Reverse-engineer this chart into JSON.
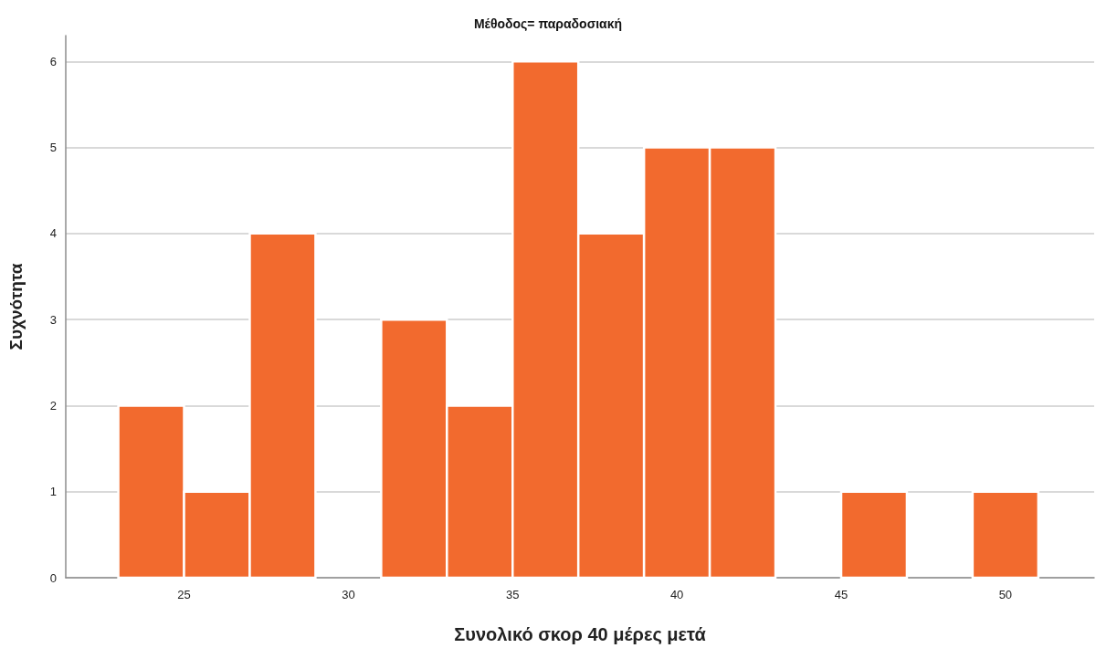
{
  "chart_data": {
    "type": "histogram",
    "title": "Μέθοδος= παραδοσιακή",
    "xlabel": "Συνολικό σκορ 40 μέρες μετά",
    "ylabel": "Συχνότητα",
    "bins": [
      23,
      25,
      27,
      29,
      31,
      33,
      35,
      37,
      39,
      41,
      43,
      45,
      47,
      49,
      51
    ],
    "values": [
      2,
      1,
      4,
      0,
      3,
      2,
      6,
      4,
      5,
      5,
      0,
      1,
      0,
      1
    ],
    "color": "#f26a2e",
    "xlim": [
      21.4,
      52.7
    ],
    "xticks": [
      25,
      30,
      35,
      40,
      45,
      50
    ],
    "ylim": [
      0,
      6.3
    ],
    "yticks": [
      0,
      1,
      2,
      3,
      4,
      5,
      6
    ],
    "grid": "y"
  }
}
